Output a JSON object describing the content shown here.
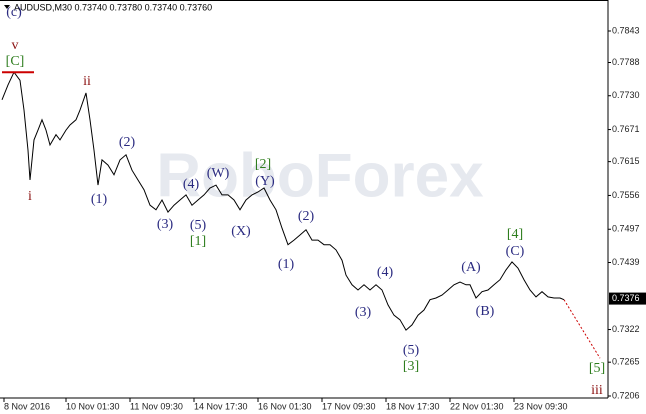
{
  "chart_data": {
    "type": "line",
    "title": "AUDUSD,M30  0.73740 0.73780 0.73740 0.73760",
    "watermark": "RoboForex",
    "xlim": [
      0,
      303
    ],
    "ylim": [
      0.72025,
      0.78936
    ],
    "xticks": [
      {
        "value": 1,
        "label": "8 Nov 2016"
      },
      {
        "value": 32,
        "label": "10 Nov 01:30"
      },
      {
        "value": 64,
        "label": "11 Nov 09:30"
      },
      {
        "value": 96,
        "label": "14 Nov 17:30"
      },
      {
        "value": 128,
        "label": "16 Nov 01:30"
      },
      {
        "value": 160,
        "label": "17 Nov 09:30"
      },
      {
        "value": 192,
        "label": "18 Nov 17:30"
      },
      {
        "value": 224,
        "label": "22 Nov 01:30"
      },
      {
        "value": 256,
        "label": "23 Nov 09:30"
      }
    ],
    "yticks": [
      0.7843,
      0.7788,
      {
        "value": 0.773,
        "label": "0.7730"
      },
      0.7671,
      0.7615,
      0.7556,
      0.7497,
      0.7439,
      0.7322,
      0.7265,
      0.7206
    ],
    "last_price": 0.7376,
    "series": [
      {
        "name": "AUDUSD",
        "color": "#000000",
        "x": [
          0,
          3,
          6,
          9,
          11,
          13,
          14,
          16,
          18,
          20,
          22,
          24,
          27,
          29,
          32,
          34,
          37,
          39,
          42,
          44,
          46,
          48,
          50,
          53,
          56,
          59,
          62,
          65,
          68,
          71,
          74,
          77,
          80,
          83,
          86,
          89,
          92,
          95,
          98,
          101,
          104,
          107,
          110,
          113,
          116,
          119,
          122,
          125,
          128,
          131,
          134,
          137,
          140,
          143,
          146,
          149,
          152,
          155,
          158,
          161,
          164,
          167,
          170,
          172,
          175,
          178,
          181,
          184,
          187,
          190,
          193,
          196,
          199,
          202,
          205,
          208,
          211,
          214,
          217,
          220,
          223,
          226,
          229,
          232,
          234,
          237,
          240,
          243,
          246,
          249,
          252,
          255,
          258,
          261,
          264,
          267,
          270,
          273,
          276,
          279,
          281
        ],
        "values": [
          0.7723,
          0.7749,
          0.7771,
          0.7757,
          0.7705,
          0.7635,
          0.7583,
          0.7653,
          0.767,
          0.7688,
          0.767,
          0.7644,
          0.7662,
          0.7653,
          0.767,
          0.7679,
          0.7688,
          0.7705,
          0.7735,
          0.7688,
          0.7635,
          0.7574,
          0.7618,
          0.7609,
          0.7592,
          0.7618,
          0.7627,
          0.76,
          0.7583,
          0.7566,
          0.7539,
          0.7531,
          0.7548,
          0.7527,
          0.7539,
          0.7548,
          0.7557,
          0.7539,
          0.7548,
          0.7557,
          0.7569,
          0.7574,
          0.7557,
          0.7557,
          0.7548,
          0.7531,
          0.7548,
          0.7557,
          0.7562,
          0.7569,
          0.7548,
          0.7531,
          0.7499,
          0.747,
          0.7478,
          0.7487,
          0.7496,
          0.7478,
          0.7478,
          0.747,
          0.747,
          0.7461,
          0.7443,
          0.7417,
          0.74,
          0.7391,
          0.74,
          0.7391,
          0.74,
          0.7391,
          0.7365,
          0.7347,
          0.7339,
          0.7321,
          0.733,
          0.7347,
          0.7356,
          0.7374,
          0.7377,
          0.7382,
          0.7391,
          0.74,
          0.7405,
          0.74,
          0.74,
          0.7377,
          0.7388,
          0.7391,
          0.74,
          0.7409,
          0.7426,
          0.744,
          0.7429,
          0.7409,
          0.7391,
          0.7379,
          0.7388,
          0.7379,
          0.7377,
          0.7377,
          0.7374
        ]
      }
    ],
    "projection": {
      "color": "#cc0000",
      "x": [
        281,
        299
      ],
      "values": [
        0.7374,
        0.7272
      ]
    },
    "level_line": {
      "color": "#cc0000",
      "x": [
        0,
        16
      ],
      "values": [
        0.7771,
        0.7771
      ]
    },
    "wave_labels": [
      {
        "text": "(c)",
        "color": "#2a2a80"
      },
      {
        "text": "v",
        "color": "#8b1010"
      },
      {
        "text": "[C]",
        "color": "#2e7d1e"
      },
      {
        "text": "ii",
        "color": "#8b1010"
      },
      {
        "text": "i",
        "color": "#8b1010"
      },
      {
        "text": "(1)",
        "color": "#2a2a80"
      },
      {
        "text": "(2)",
        "color": "#2a2a80"
      },
      {
        "text": "(3)",
        "color": "#2a2a80"
      },
      {
        "text": "(4)",
        "color": "#2a2a80"
      },
      {
        "text": "(5)",
        "color": "#2a2a80"
      },
      {
        "text": "[1]",
        "color": "#2e7d1e"
      },
      {
        "text": "(W)",
        "color": "#2a2a80"
      },
      {
        "text": "(X)",
        "color": "#2a2a80"
      },
      {
        "text": "(Y)",
        "color": "#2a2a80"
      },
      {
        "text": "[2]",
        "color": "#2e7d1e"
      },
      {
        "text": "(1)",
        "color": "#2a2a80"
      },
      {
        "text": "(2)",
        "color": "#2a2a80"
      },
      {
        "text": "(3)",
        "color": "#2a2a80"
      },
      {
        "text": "(4)",
        "color": "#2a2a80"
      },
      {
        "text": "(5)",
        "color": "#2a2a80"
      },
      {
        "text": "[3]",
        "color": "#2e7d1e"
      },
      {
        "text": "(A)",
        "color": "#2a2a80"
      },
      {
        "text": "(B)",
        "color": "#2a2a80"
      },
      {
        "text": "(C)",
        "color": "#2a2a80"
      },
      {
        "text": "[4]",
        "color": "#2e7d1e"
      },
      {
        "text": "[5]",
        "color": "#2e7d1e"
      },
      {
        "text": "iii",
        "color": "#8b1010"
      }
    ]
  }
}
